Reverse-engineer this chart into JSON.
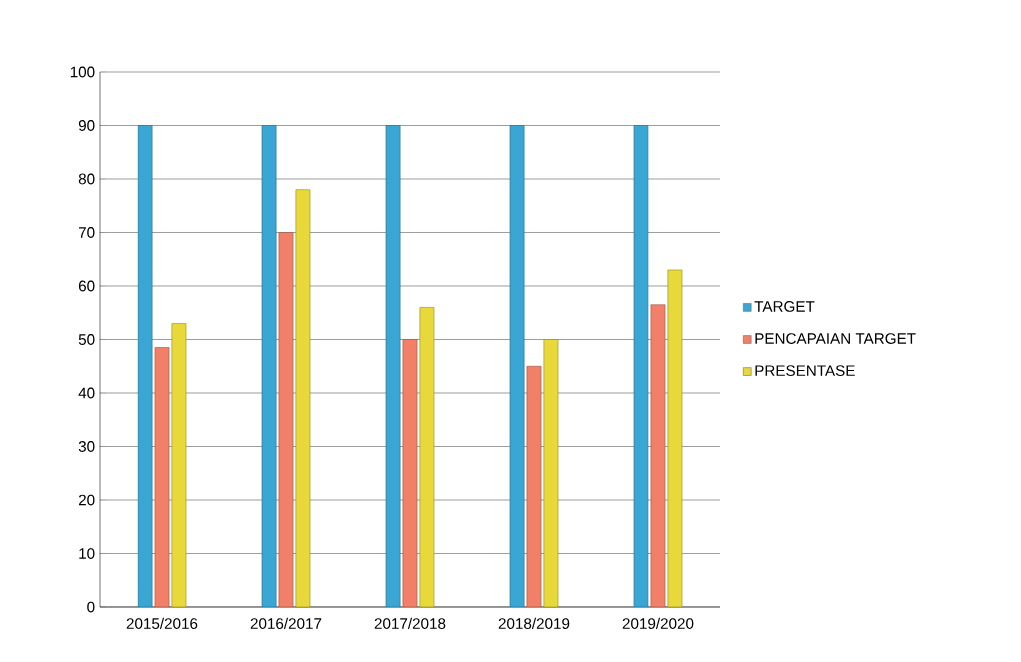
{
  "chart_data": {
    "type": "bar",
    "categories": [
      "2015/2016",
      "2016/2017",
      "2017/2018",
      "2018/2019",
      "2019/2020"
    ],
    "series": [
      {
        "name": "TARGET",
        "color": "#3aa6d4",
        "values": [
          90,
          90,
          90,
          90,
          90
        ]
      },
      {
        "name": "PENCAPAIAN TARGET",
        "color": "#f28068",
        "values": [
          48.5,
          70,
          50,
          45,
          56.5
        ]
      },
      {
        "name": "PRESENTASE",
        "color": "#e8d83a",
        "values": [
          53,
          78,
          56,
          50,
          63
        ]
      }
    ],
    "ylim": [
      0,
      100
    ],
    "yticks": [
      0,
      10,
      20,
      30,
      40,
      50,
      60,
      70,
      80,
      90,
      100
    ],
    "grid": "y",
    "legend": "right"
  }
}
